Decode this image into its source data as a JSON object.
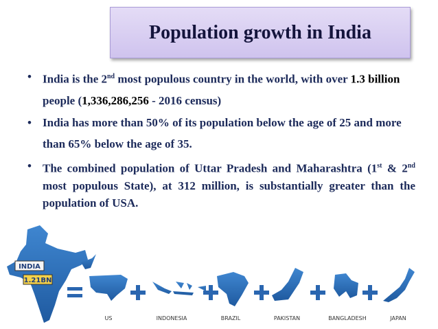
{
  "title": "Population growth in India",
  "bullets": [
    [
      "India is the 2",
      "nd",
      " most populous country in the world, with over ",
      "1.3 billion",
      " people (",
      "1,336,286,256",
      " - 2016 census)"
    ],
    [
      "India has more than 50% of its population below the age of 25 and more than 65%  below the age of 35."
    ],
    [
      "The combined population of Uttar Pradesh and Maharashtra (1",
      "st",
      " & 2",
      "nd",
      " most populous State), at 312 million, is substantially greater than the population of USA."
    ]
  ],
  "graphic": {
    "india_label": "INDIA",
    "india_population": "1.21BN",
    "countries": [
      "US",
      "INDONESIA",
      "BRAZIL",
      "PAKISTAN",
      "BANGLADESH",
      "JAPAN"
    ]
  }
}
